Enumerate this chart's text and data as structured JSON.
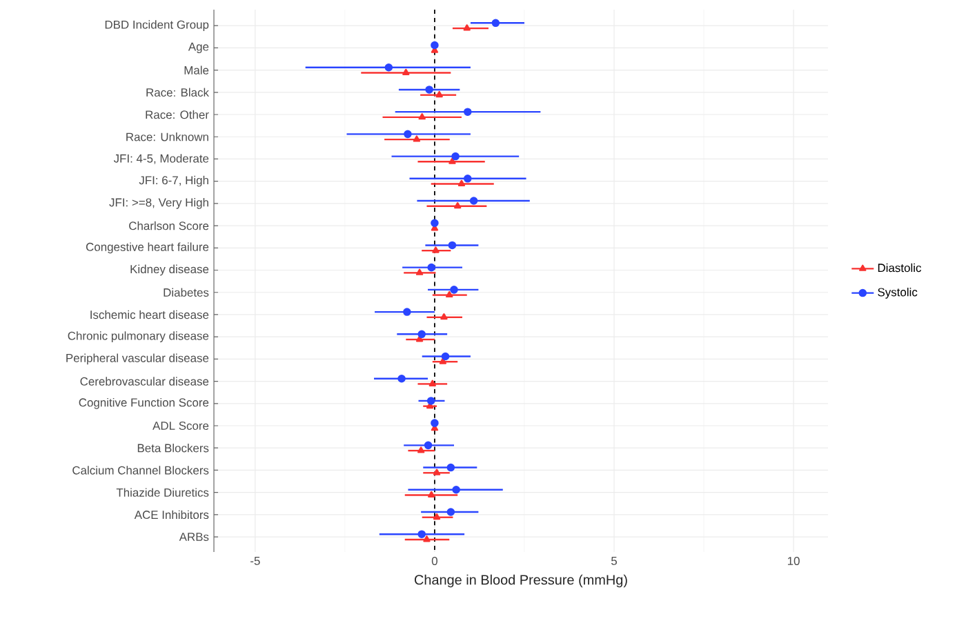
{
  "chart_data": {
    "type": "scatter",
    "orientation": "horizontal",
    "categories": [
      "DBD Incident Group",
      "Age",
      "Male",
      "Race: Black",
      "Race: Other",
      "Race: Unknown",
      "JFI: 4-5, Moderate",
      "JFI: 6-7, High",
      "JFI: >=8, Very High",
      "Charlson Score",
      "Congestive heart failure",
      "Kidney disease",
      "Diabetes",
      "Ischemic heart disease",
      "Chronic pulmonary disease",
      "Peripheral vascular disease",
      "Cerebrovascular disease",
      "Cognitive Function Score",
      "ADL Score",
      "Beta Blockers",
      "Calcium Channel Blockers",
      "Thiazide Diuretics",
      "ACE Inhibitors",
      "ARBs"
    ],
    "series": [
      {
        "name": "Diastolic",
        "color": "#f8312f",
        "marker": "triangle",
        "values": [
          0.9,
          0,
          -0.8,
          0.13,
          -0.35,
          -0.5,
          0.49,
          0.75,
          0.64,
          0,
          0.03,
          -0.42,
          0.41,
          0.26,
          -0.42,
          0.23,
          -0.06,
          -0.13,
          0,
          -0.38,
          0.06,
          -0.09,
          0.06,
          -0.22
        ],
        "errors": [
          [
            0.5,
            1.5
          ],
          null,
          [
            -2.05,
            0.45
          ],
          [
            -0.4,
            0.6
          ],
          [
            -1.45,
            0.75
          ],
          [
            -1.4,
            0.42
          ],
          [
            -0.47,
            1.4
          ],
          [
            -0.1,
            1.65
          ],
          [
            -0.22,
            1.45
          ],
          null,
          [
            -0.36,
            0.45
          ],
          [
            -0.86,
            0.03
          ],
          [
            -0.06,
            0.9
          ],
          [
            -0.22,
            0.77
          ],
          [
            -0.8,
            0
          ],
          [
            -0.06,
            0.64
          ],
          [
            -0.47,
            0.35
          ],
          [
            -0.32,
            0.06
          ],
          null,
          [
            -0.74,
            0
          ],
          [
            -0.32,
            0.42
          ],
          [
            -0.83,
            0.64
          ],
          [
            -0.35,
            0.51
          ],
          [
            -0.83,
            0.41
          ]
        ]
      },
      {
        "name": "Systolic",
        "color": "#2a45ff",
        "marker": "circle",
        "values": [
          1.7,
          0,
          -1.28,
          -0.15,
          0.92,
          -0.75,
          0.58,
          0.92,
          1.09,
          0,
          0.49,
          -0.09,
          0.54,
          -0.77,
          -0.36,
          0.3,
          -0.92,
          -0.1,
          0,
          -0.18,
          0.45,
          0.6,
          0.45,
          -0.36
        ],
        "errors": [
          [
            1.0,
            2.5
          ],
          null,
          [
            -3.6,
            1.0
          ],
          [
            -1.0,
            0.7
          ],
          [
            -1.1,
            2.95
          ],
          [
            -2.45,
            1.0
          ],
          [
            -1.2,
            2.35
          ],
          [
            -0.7,
            2.55
          ],
          [
            -0.49,
            2.65
          ],
          null,
          [
            -0.26,
            1.22
          ],
          [
            -0.9,
            0.77
          ],
          [
            -0.19,
            1.22
          ],
          [
            -1.67,
            0
          ],
          [
            -1.05,
            0.35
          ],
          [
            -0.35,
            1.0
          ],
          [
            -1.69,
            -0.19
          ],
          [
            -0.45,
            0.28
          ],
          null,
          [
            -0.86,
            0.54
          ],
          [
            -0.32,
            1.18
          ],
          [
            -0.74,
            1.9
          ],
          [
            -0.38,
            1.22
          ],
          [
            -1.54,
            0.83
          ]
        ]
      }
    ],
    "xlabel": "Change in Blood Pressure (mmHg)",
    "xlim": [
      -6.15,
      10.96
    ],
    "xticks": [
      -5,
      0,
      5,
      10
    ],
    "ref_lines": [
      {
        "axis": "x",
        "value": 0,
        "color": "#000000",
        "line_style": "dashed"
      }
    ],
    "grid": true,
    "legend": "right"
  }
}
